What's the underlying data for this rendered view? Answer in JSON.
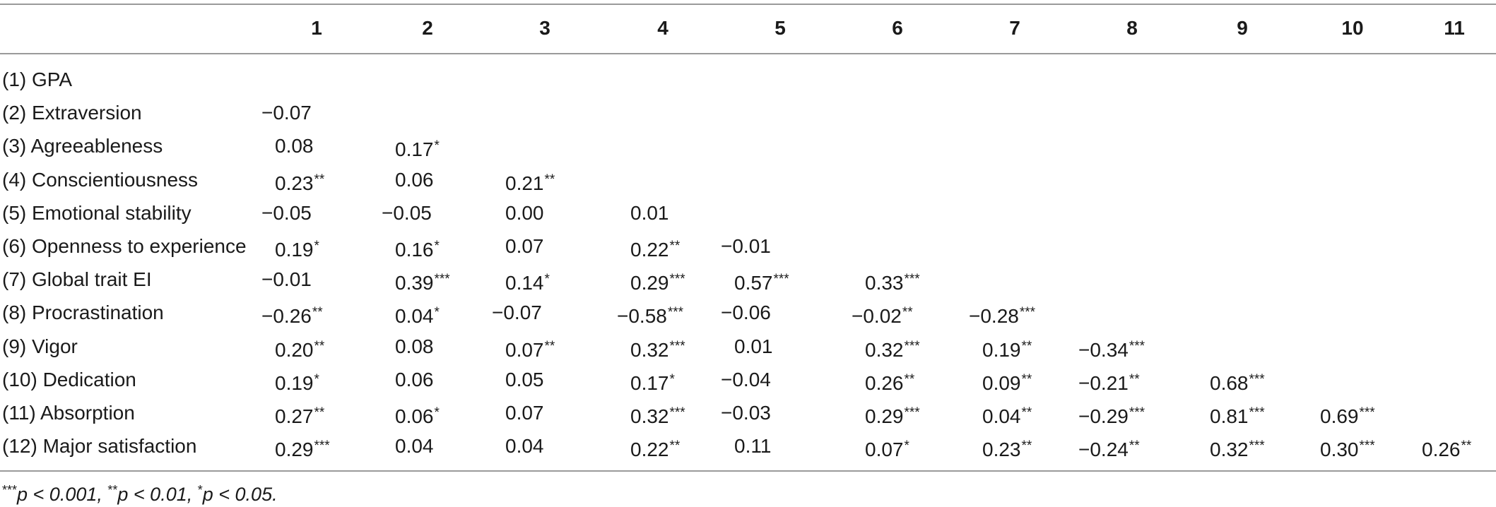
{
  "table": {
    "columns": [
      "1",
      "2",
      "3",
      "4",
      "5",
      "6",
      "7",
      "8",
      "9",
      "10",
      "11"
    ],
    "rows": [
      {
        "label": "(1) GPA",
        "cells": []
      },
      {
        "label": "(2) Extraversion",
        "cells": [
          {
            "v": "−0.07",
            "s": ""
          }
        ]
      },
      {
        "label": "(3) Agreeableness",
        "cells": [
          {
            "v": "0.08",
            "s": ""
          },
          {
            "v": "0.17",
            "s": "*"
          }
        ]
      },
      {
        "label": "(4) Conscientiousness",
        "cells": [
          {
            "v": "0.23",
            "s": "**"
          },
          {
            "v": "0.06",
            "s": ""
          },
          {
            "v": "0.21",
            "s": "**"
          }
        ]
      },
      {
        "label": "(5) Emotional stability",
        "cells": [
          {
            "v": "−0.05",
            "s": ""
          },
          {
            "v": "−0.05",
            "s": ""
          },
          {
            "v": "0.00",
            "s": ""
          },
          {
            "v": "0.01",
            "s": ""
          }
        ]
      },
      {
        "label": "(6) Openness to experience",
        "cells": [
          {
            "v": "0.19",
            "s": "*"
          },
          {
            "v": "0.16",
            "s": "*"
          },
          {
            "v": "0.07",
            "s": ""
          },
          {
            "v": "0.22",
            "s": "**"
          },
          {
            "v": "−0.01",
            "s": ""
          }
        ]
      },
      {
        "label": "(7) Global trait EI",
        "cells": [
          {
            "v": "−0.01",
            "s": ""
          },
          {
            "v": "0.39",
            "s": "***"
          },
          {
            "v": "0.14",
            "s": "*"
          },
          {
            "v": "0.29",
            "s": "***"
          },
          {
            "v": "0.57",
            "s": "***"
          },
          {
            "v": "0.33",
            "s": "***"
          }
        ]
      },
      {
        "label": "(8) Procrastination",
        "cells": [
          {
            "v": "−0.26",
            "s": "**"
          },
          {
            "v": "0.04",
            "s": "*"
          },
          {
            "v": "−0.07",
            "s": ""
          },
          {
            "v": "−0.58",
            "s": "***"
          },
          {
            "v": "−0.06",
            "s": ""
          },
          {
            "v": "−0.02",
            "s": "**"
          },
          {
            "v": "−0.28",
            "s": "***"
          }
        ]
      },
      {
        "label": "(9) Vigor",
        "cells": [
          {
            "v": "0.20",
            "s": "**"
          },
          {
            "v": "0.08",
            "s": ""
          },
          {
            "v": "0.07",
            "s": "**"
          },
          {
            "v": "0.32",
            "s": "***"
          },
          {
            "v": "0.01",
            "s": ""
          },
          {
            "v": "0.32",
            "s": "***"
          },
          {
            "v": "0.19",
            "s": "**"
          },
          {
            "v": "−0.34",
            "s": "***"
          }
        ]
      },
      {
        "label": "(10) Dedication",
        "cells": [
          {
            "v": "0.19",
            "s": "*"
          },
          {
            "v": "0.06",
            "s": ""
          },
          {
            "v": "0.05",
            "s": ""
          },
          {
            "v": "0.17",
            "s": "*"
          },
          {
            "v": "−0.04",
            "s": ""
          },
          {
            "v": "0.26",
            "s": "**"
          },
          {
            "v": "0.09",
            "s": "**"
          },
          {
            "v": "−0.21",
            "s": "**"
          },
          {
            "v": "0.68",
            "s": "***"
          }
        ]
      },
      {
        "label": "(11) Absorption",
        "cells": [
          {
            "v": "0.27",
            "s": "**"
          },
          {
            "v": "0.06",
            "s": "*"
          },
          {
            "v": "0.07",
            "s": ""
          },
          {
            "v": "0.32",
            "s": "***"
          },
          {
            "v": "−0.03",
            "s": ""
          },
          {
            "v": "0.29",
            "s": "***"
          },
          {
            "v": "0.04",
            "s": "**"
          },
          {
            "v": "−0.29",
            "s": "***"
          },
          {
            "v": "0.81",
            "s": "***"
          },
          {
            "v": "0.69",
            "s": "***"
          }
        ]
      },
      {
        "label": "(12) Major satisfaction",
        "cells": [
          {
            "v": "0.29",
            "s": "***"
          },
          {
            "v": "0.04",
            "s": ""
          },
          {
            "v": "0.04",
            "s": ""
          },
          {
            "v": "0.22",
            "s": "**"
          },
          {
            "v": "0.11",
            "s": ""
          },
          {
            "v": "0.07",
            "s": "*"
          },
          {
            "v": "0.23",
            "s": "**"
          },
          {
            "v": "−0.24",
            "s": "**"
          },
          {
            "v": "0.32",
            "s": "***"
          },
          {
            "v": "0.30",
            "s": "***"
          },
          {
            "v": "0.26",
            "s": "**"
          }
        ]
      }
    ]
  },
  "footnote": {
    "s1": "***",
    "t1": "p < 0.001, ",
    "s2": "**",
    "t2": "p < 0.01, ",
    "s3": "*",
    "t3": "p < 0.05."
  }
}
